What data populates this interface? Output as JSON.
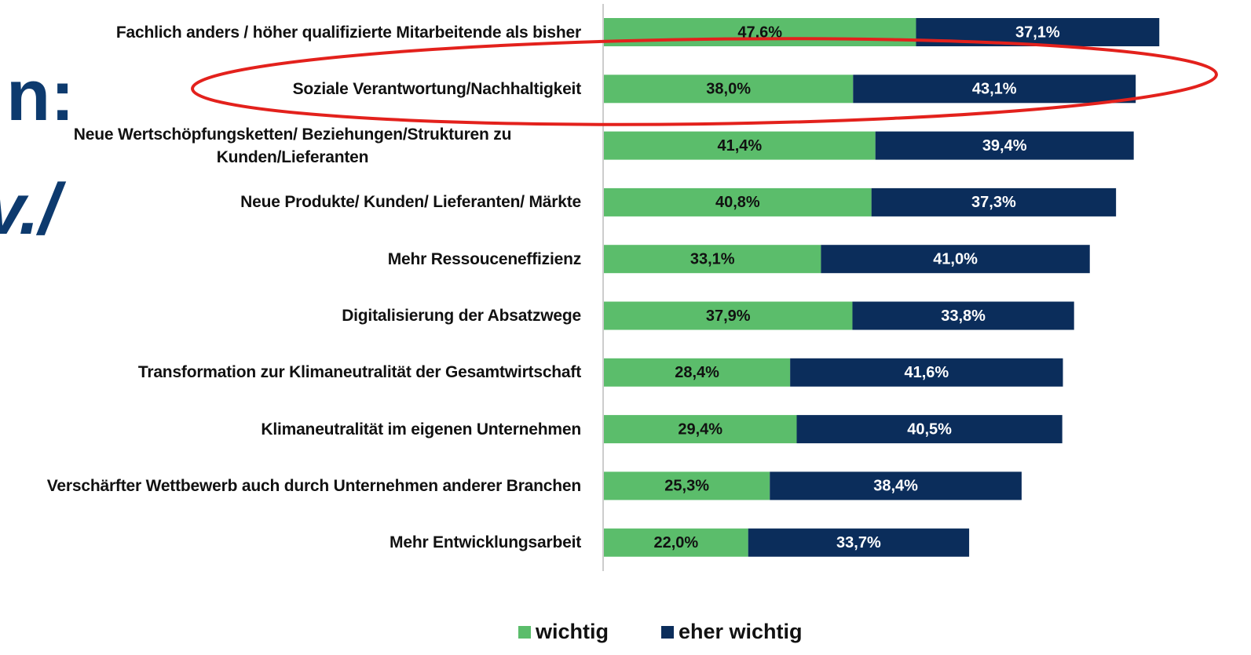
{
  "chart_data": {
    "type": "stacked_bar_horizontal",
    "categories": [
      "Fachlich anders / höher qualifizierte Mitarbeitende als bisher",
      "Soziale Verantwortung/Nachhaltigkeit",
      "Neue Wertschöpfungsketten/ Beziehungen/Strukturen zu Kunden/Lieferanten",
      "Neue Produkte/ Kunden/ Lieferanten/ Märkte",
      "Mehr Ressouceneffizienz",
      "Digitalisierung der Absatzwege",
      "Transformation zur Klimaneutralität der Gesamtwirtschaft",
      "Klimaneutralität im eigenen Unternehmen",
      "Verschärfter Wettbewerb auch durch Unternehmen anderer Branchen",
      "Mehr Entwicklungsarbeit"
    ],
    "series": [
      {
        "name": "wichtig",
        "color": "#5bbd6b",
        "label_color": "#111111",
        "values": [
          47.6,
          38.0,
          41.4,
          40.8,
          33.1,
          37.9,
          28.4,
          29.4,
          25.3,
          22.0
        ],
        "value_labels": [
          "47,6%",
          "38,0%",
          "41,4%",
          "40,8%",
          "33,1%",
          "37,9%",
          "28,4%",
          "29,4%",
          "25,3%",
          "22,0%"
        ]
      },
      {
        "name": "eher wichtig",
        "color": "#0b2d5b",
        "label_color": "#ffffff",
        "values": [
          37.1,
          43.1,
          39.4,
          37.3,
          41.0,
          33.8,
          41.6,
          40.5,
          38.4,
          33.7
        ],
        "value_labels": [
          "37,1%",
          "43,1%",
          "39,4%",
          "37,3%",
          "41,0%",
          "33,8%",
          "41,6%",
          "40,5%",
          "38,4%",
          "33,7%"
        ]
      }
    ],
    "xlim": [
      0,
      100
    ],
    "legend": "bottom",
    "background_fragments": [
      "n:",
      "v./"
    ]
  }
}
